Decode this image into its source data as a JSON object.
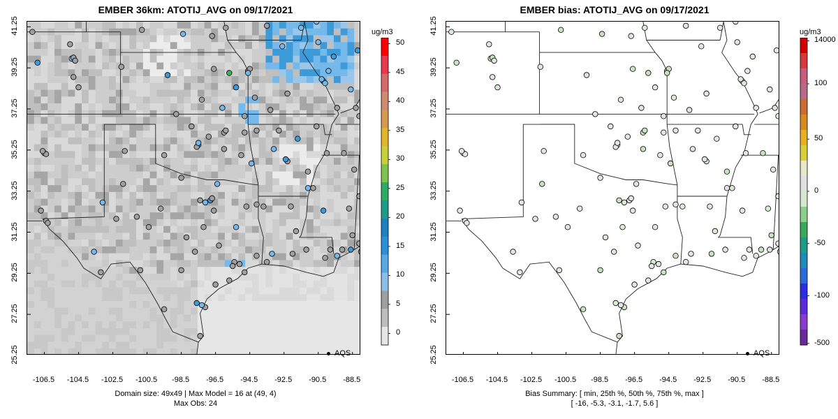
{
  "left": {
    "title": "EMBER 36km: ATOTIJ_AVG on 09/17/2021",
    "footer_line1": "Domain size: 49x49 | Max Model = 16 at (49, 4)",
    "footer_line2": "Max Obs: 24",
    "colorbar": {
      "unit": "ug/m3",
      "labels": [
        "50",
        "45",
        "40",
        "35",
        "30",
        "25",
        "20",
        "15",
        "10",
        "5",
        "0"
      ],
      "range": [
        -2,
        51
      ]
    }
  },
  "right": {
    "title": "EMBER bias: ATOTIJ_AVG on 09/17/2021",
    "footer_line1": "Bias Summary: [ min, 25th %, 50th %, 75th %, max ]",
    "footer_line2": "[ -16,   -5.3,   -3.1,   -1.7,   5.6 ]",
    "colorbar": {
      "unit": "ug/m3",
      "labels": [
        "14000",
        "100",
        "50",
        "0",
        "-50",
        "-100",
        "-500"
      ]
    }
  },
  "aqs_label": "AQS",
  "x_ticks": [
    "-106.5",
    "-104.5",
    "-102.5",
    "-100.5",
    "-98.5",
    "-96.5",
    "-94.5",
    "-92.5",
    "-90.5",
    "-88.5"
  ],
  "y_ticks": [
    "41.25",
    "39.25",
    "37.25",
    "35.25",
    "33.25",
    "31.25",
    "29.25",
    "27.25",
    "25.25"
  ],
  "map_extent": {
    "lon": [
      -107.5,
      -88.0
    ],
    "lat": [
      25.25,
      41.5
    ]
  },
  "colors": {
    "land_light": "#d9d9d9",
    "land_mid": "#bfbfbf",
    "land_dark": "#a6a6a6",
    "blue_light": "#74b9ea",
    "blue": "#3d9ad9",
    "blue_dark": "#1e78c0",
    "green": "#3fae5a",
    "obs_grey": "#a0a0a0"
  }
}
